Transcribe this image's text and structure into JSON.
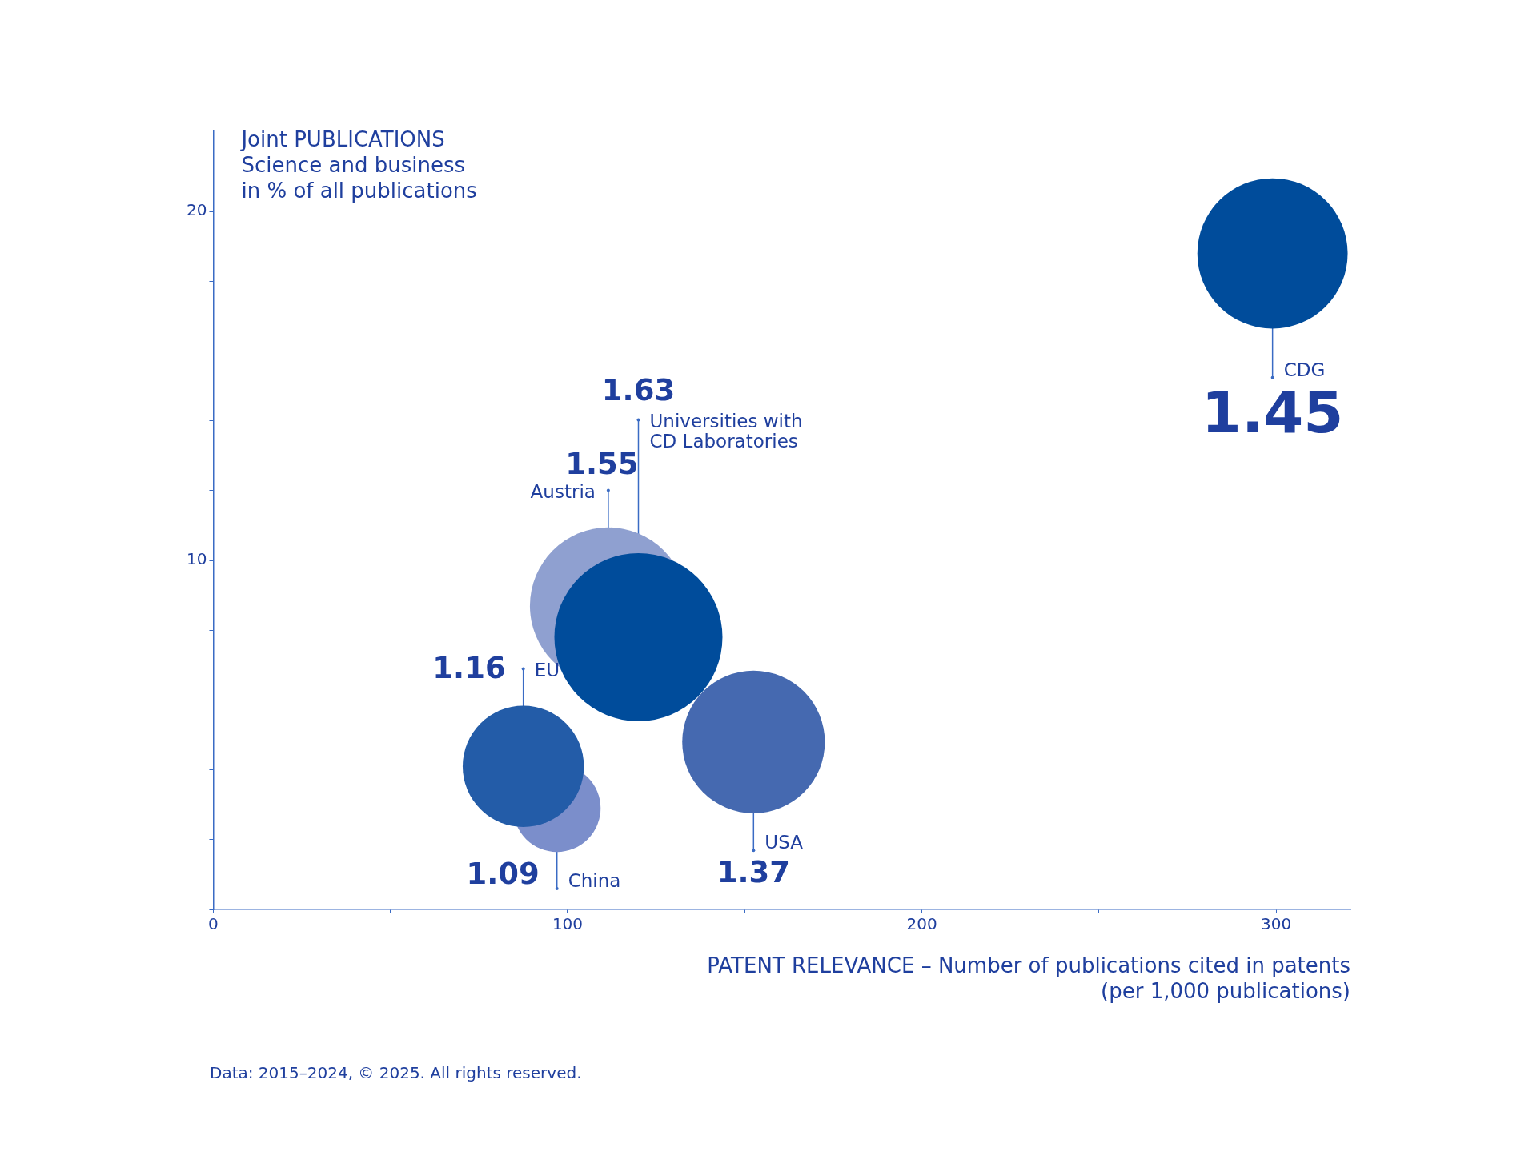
{
  "chart_data": {
    "type": "bubble",
    "ylabel": "Joint PUBLICATIONS\nScience and business\nin % of all publications",
    "xlabel": "PATENT RELEVANCE – Number of publications cited in patents\n(per 1,000 publications)",
    "annotations": [
      "Data: 2015–2024, © 2025. All rights reserved.",
      {
        "text": "1.45",
        "x": 299,
        "y": 18.8
      },
      {
        "text": "1.55",
        "x": 111.5,
        "y": 8.7
      },
      {
        "text": "1.63",
        "x": 120,
        "y": 7.8
      },
      {
        "text": "1.37",
        "x": 152.5,
        "y": 4.8
      },
      {
        "text": "1.09",
        "x": 97,
        "y": 2.9
      },
      {
        "text": "1.16",
        "x": 87.5,
        "y": 4.1
      }
    ],
    "xlim": [
      0,
      321
    ],
    "xticks": [
      0,
      {
        "value": 50,
        "label": null
      },
      100,
      {
        "value": 150,
        "label": null
      },
      200,
      {
        "value": 250,
        "label": null
      },
      300
    ],
    "ylim": [
      0,
      22.3
    ],
    "yticks": [
      {
        "value": 0,
        "label": null
      },
      {
        "value": 2,
        "label": null
      },
      {
        "value": 4,
        "label": null
      },
      {
        "value": 6,
        "label": null
      },
      {
        "value": 8,
        "label": null
      },
      10,
      {
        "value": 12,
        "label": null
      },
      {
        "value": 14,
        "label": null
      },
      {
        "value": 16,
        "label": null
      },
      {
        "value": 18,
        "label": null
      },
      20
    ],
    "grid": false,
    "legend": false,
    "series": [
      {
        "name": "CDG",
        "color": "#004c9b",
        "x": [
          299
        ],
        "values": [
          18.8
        ],
        "sizes": [
          0.8
        ]
      },
      {
        "name": "Austria",
        "color": "#8fa0d0",
        "x": [
          111.5
        ],
        "values": [
          8.7
        ],
        "sizes": [
          0.87
        ]
      },
      {
        "name": "Universities with\nCD Laboratories",
        "color": "#004c9b",
        "x": [
          120
        ],
        "values": [
          7.8
        ],
        "sizes": [
          1
        ]
      },
      {
        "name": "USA",
        "color": "#4569b0",
        "x": [
          152.5
        ],
        "values": [
          4.8
        ],
        "sizes": [
          0.72
        ]
      },
      {
        "name": "China",
        "color": "#7b8ecb",
        "x": [
          97
        ],
        "values": [
          2.9
        ],
        "sizes": [
          0.27
        ]
      },
      {
        "name": "EU",
        "color": "#235ca8",
        "x": [
          87.5
        ],
        "values": [
          4.1
        ],
        "sizes": [
          0.52
        ]
      }
    ]
  }
}
